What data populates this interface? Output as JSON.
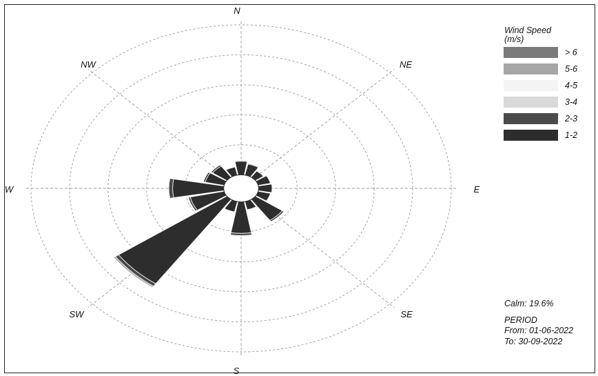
{
  "chart_data": {
    "type": "windrose",
    "directions": [
      {
        "label": "N",
        "angle": 0
      },
      {
        "label": "NE",
        "angle": 45
      },
      {
        "label": "E",
        "angle": 90
      },
      {
        "label": "SE",
        "angle": 135
      },
      {
        "label": "S",
        "angle": 180
      },
      {
        "label": "SW",
        "angle": 225
      },
      {
        "label": "W",
        "angle": 270
      },
      {
        "label": "NW",
        "angle": 315
      }
    ],
    "legend_title": "Wind Speed (m/s)",
    "speed_bins": [
      {
        "label": "> 6",
        "color": "#7a7a7a"
      },
      {
        "label": "5-6",
        "color": "#a6a6a6"
      },
      {
        "label": "4-5",
        "color": "#f4f4f4"
      },
      {
        "label": "3-4",
        "color": "#d9d9d9"
      },
      {
        "label": "2-3",
        "color": "#4a4a4a"
      },
      {
        "label": "1-2",
        "color": "#2d2d2d"
      }
    ],
    "sector_width_deg": 22.5,
    "sectors": [
      {
        "dir": 0,
        "segments": [
          {
            "bin": "1-2",
            "value": 1.8
          },
          {
            "bin": "2-3",
            "value": 0.1
          }
        ]
      },
      {
        "dir": 22.5,
        "segments": [
          {
            "bin": "1-2",
            "value": 1.5
          },
          {
            "bin": "2-3",
            "value": 0.1
          }
        ]
      },
      {
        "dir": 45,
        "segments": [
          {
            "bin": "1-2",
            "value": 1.0
          }
        ]
      },
      {
        "dir": 67.5,
        "segments": [
          {
            "bin": "1-2",
            "value": 1.3
          }
        ]
      },
      {
        "dir": 90,
        "segments": [
          {
            "bin": "1-2",
            "value": 1.4
          }
        ]
      },
      {
        "dir": 112.5,
        "segments": [
          {
            "bin": "1-2",
            "value": 1.3
          }
        ]
      },
      {
        "dir": 135,
        "segments": [
          {
            "bin": "1-2",
            "value": 3.4
          },
          {
            "bin": "2-3",
            "value": 0.2
          }
        ]
      },
      {
        "dir": 157.5,
        "segments": [
          {
            "bin": "1-2",
            "value": 1.1
          }
        ]
      },
      {
        "dir": 180,
        "segments": [
          {
            "bin": "1-2",
            "value": 4.2
          },
          {
            "bin": "2-3",
            "value": 0.3
          }
        ]
      },
      {
        "dir": 202.5,
        "segments": [
          {
            "bin": "1-2",
            "value": 1.4
          }
        ]
      },
      {
        "dir": 225,
        "segments": [
          {
            "bin": "1-2",
            "value": 13.7
          },
          {
            "bin": "2-3",
            "value": 0.4
          },
          {
            "bin": "5-6",
            "value": 0.2
          }
        ]
      },
      {
        "dir": 247.5,
        "segments": [
          {
            "bin": "1-2",
            "value": 3.6
          },
          {
            "bin": "2-3",
            "value": 0.2
          }
        ]
      },
      {
        "dir": 270,
        "segments": [
          {
            "bin": "1-2",
            "value": 5.3
          },
          {
            "bin": "2-3",
            "value": 0.4
          }
        ]
      },
      {
        "dir": 292.5,
        "segments": [
          {
            "bin": "1-2",
            "value": 2.0
          },
          {
            "bin": "2-3",
            "value": 0.2
          }
        ]
      },
      {
        "dir": 315,
        "segments": [
          {
            "bin": "1-2",
            "value": 1.8
          },
          {
            "bin": "2-3",
            "value": 0.2
          }
        ]
      },
      {
        "dir": 337.5,
        "segments": [
          {
            "bin": "1-2",
            "value": 1.1
          }
        ]
      }
    ],
    "ring_values": [
      4,
      8,
      12,
      16,
      20
    ],
    "grid": true,
    "legend_position": "top-right"
  },
  "info": {
    "calm": "Calm: 19.6%",
    "period_label": "PERIOD",
    "from": "From: 01-06-2022",
    "to": "To: 30-09-2022"
  }
}
